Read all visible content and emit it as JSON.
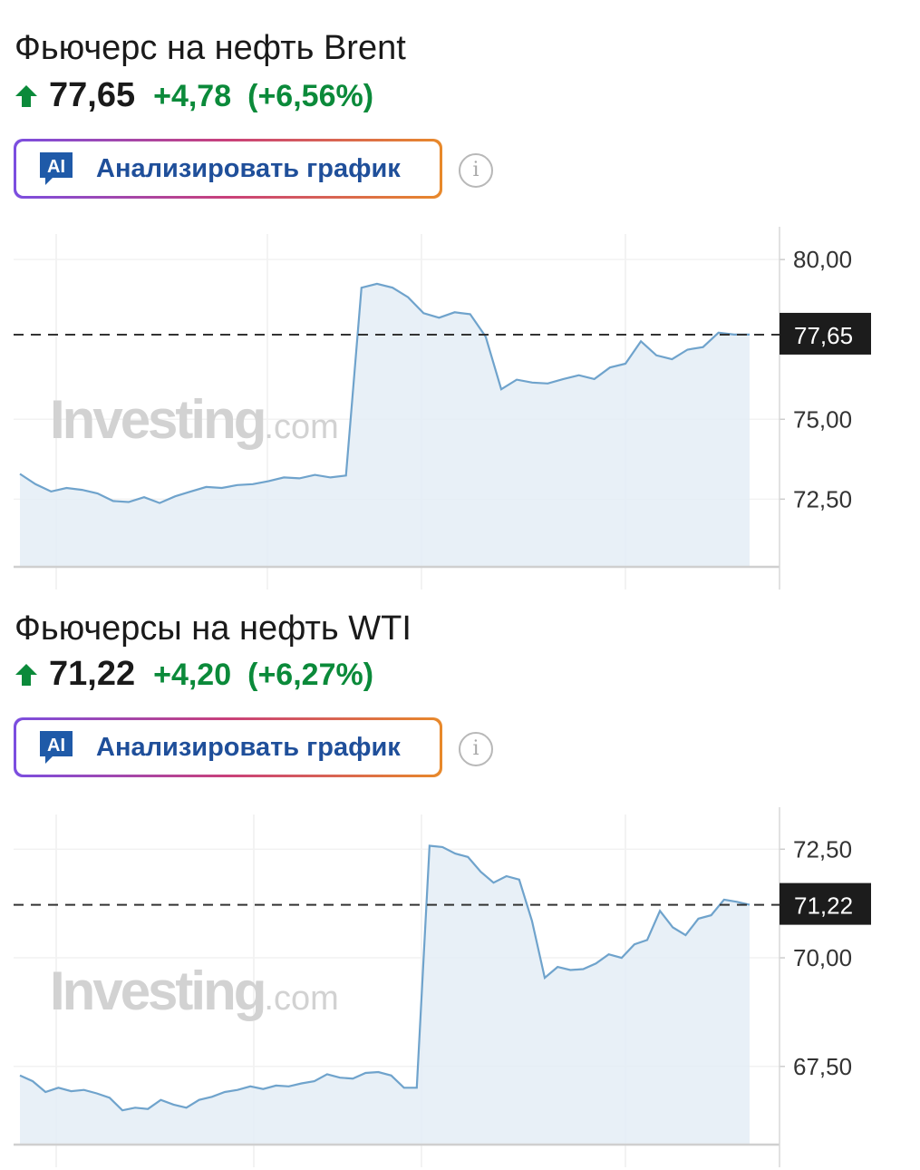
{
  "instruments": [
    {
      "title": "Фьючерс на нефть Brent",
      "price": "77,65",
      "change": "+4,78",
      "change_percent": "(+6,56%)",
      "direction_icon": "arrow-up-icon",
      "ai_button": {
        "badge": "AI",
        "label": "Анализировать график"
      },
      "info_icon": "info-icon"
    },
    {
      "title": "Фьючерсы на нефть WTI",
      "price": "71,22",
      "change": "+4,20",
      "change_percent": "(+6,27%)",
      "direction_icon": "arrow-up-icon",
      "ai_button": {
        "badge": "AI",
        "label": "Анализировать график"
      },
      "info_icon": "info-icon"
    }
  ],
  "colors": {
    "up": "#0b8a3a",
    "line": "#6fa3cc",
    "fill": "#e4edf6",
    "ai_text": "#1f4f9a"
  },
  "watermark": {
    "brand": "Investing",
    "suffix": ".com"
  },
  "chart_data": [
    {
      "type": "area",
      "title": "",
      "xlabel": "",
      "ylabel": "",
      "ylim": [
        70.38,
        80.8
      ],
      "yticks": [
        72.5,
        75.0,
        80.0
      ],
      "ytick_labels": [
        "72,50",
        "75,00",
        "80,00"
      ],
      "current_value": 77.65,
      "current_label": "77,65",
      "grid": true,
      "values": [
        73.29,
        72.97,
        72.74,
        72.85,
        72.79,
        72.68,
        72.44,
        72.41,
        72.56,
        72.38,
        72.59,
        72.74,
        72.88,
        72.85,
        72.94,
        72.97,
        73.06,
        73.18,
        73.15,
        73.26,
        73.18,
        73.24,
        79.12,
        79.24,
        79.12,
        78.82,
        78.32,
        78.18,
        78.35,
        78.29,
        77.59,
        75.94,
        76.24,
        76.15,
        76.12,
        76.26,
        76.38,
        76.26,
        76.62,
        76.74,
        77.44,
        77.0,
        76.88,
        77.18,
        77.26,
        77.71,
        77.65,
        77.65
      ]
    },
    {
      "type": "area",
      "title": "",
      "xlabel": "",
      "ylabel": "",
      "ylim": [
        65.7,
        73.3
      ],
      "yticks": [
        67.5,
        70.0,
        72.5
      ],
      "ytick_labels": [
        "67,50",
        "70,00",
        "72,50"
      ],
      "current_value": 71.22,
      "current_label": "71,22",
      "grid": true,
      "values": [
        67.29,
        67.16,
        66.91,
        67.01,
        66.93,
        66.96,
        66.88,
        66.78,
        66.49,
        66.55,
        66.52,
        66.73,
        66.62,
        66.55,
        66.73,
        66.8,
        66.91,
        66.96,
        67.04,
        66.98,
        67.06,
        67.04,
        67.11,
        67.16,
        67.32,
        67.24,
        67.22,
        67.35,
        67.37,
        67.29,
        67.01,
        67.01,
        72.58,
        72.55,
        72.4,
        72.32,
        71.98,
        71.73,
        71.88,
        71.8,
        70.85,
        69.54,
        69.79,
        69.72,
        69.74,
        69.87,
        70.08,
        70.0,
        70.31,
        70.41,
        71.08,
        70.7,
        70.52,
        70.9,
        70.98,
        71.34,
        71.29,
        71.22
      ]
    }
  ]
}
